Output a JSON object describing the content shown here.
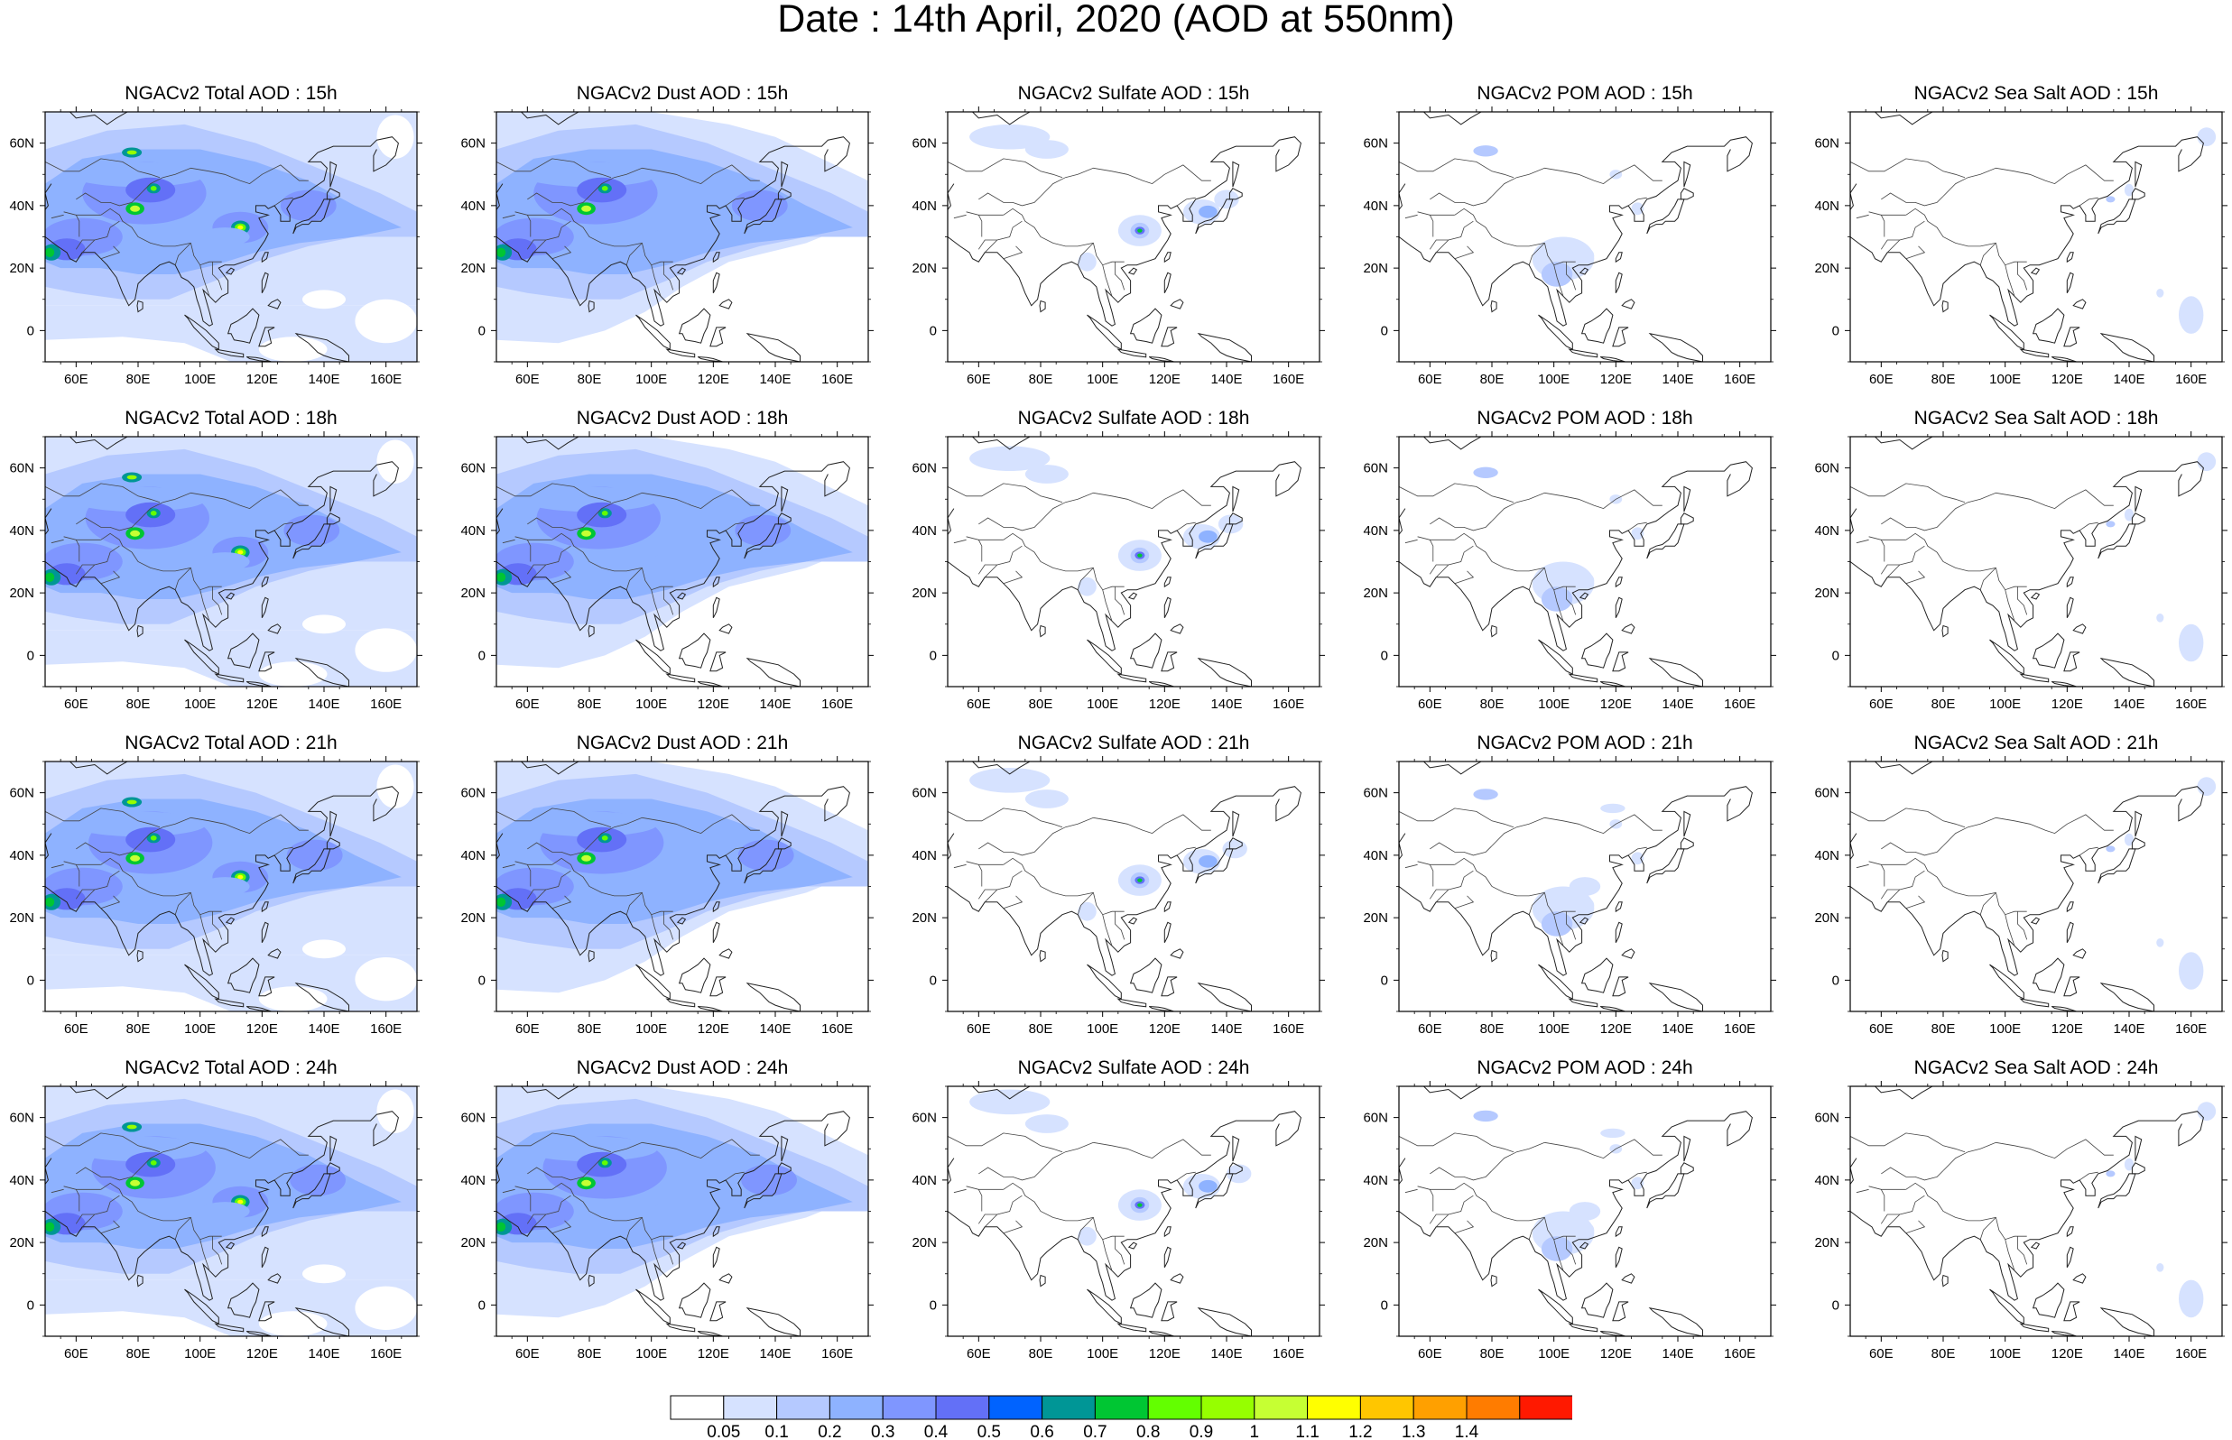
{
  "figure": {
    "title": "Date : 14th April, 2020 (AOD at 550nm)"
  },
  "map": {
    "lat_ticks": [
      "60N",
      "40N",
      "20N",
      "0"
    ],
    "lon_ticks": [
      "60E",
      "80E",
      "100E",
      "120E",
      "140E",
      "160E"
    ],
    "lat_range": [
      -10,
      70
    ],
    "lon_range": [
      50,
      170
    ]
  },
  "panels": [
    {
      "title": "NGACv2 Total AOD : 15h",
      "variable": "total",
      "hour": 15
    },
    {
      "title": "NGACv2 Dust AOD : 15h",
      "variable": "dust",
      "hour": 15
    },
    {
      "title": "NGACv2 Sulfate AOD : 15h",
      "variable": "sulfate",
      "hour": 15
    },
    {
      "title": "NGACv2 POM AOD : 15h",
      "variable": "pom",
      "hour": 15
    },
    {
      "title": "NGACv2 Sea Salt AOD : 15h",
      "variable": "seasalt",
      "hour": 15
    },
    {
      "title": "NGACv2 Total AOD : 18h",
      "variable": "total",
      "hour": 18
    },
    {
      "title": "NGACv2 Dust AOD : 18h",
      "variable": "dust",
      "hour": 18
    },
    {
      "title": "NGACv2 Sulfate AOD : 18h",
      "variable": "sulfate",
      "hour": 18
    },
    {
      "title": "NGACv2 POM AOD : 18h",
      "variable": "pom",
      "hour": 18
    },
    {
      "title": "NGACv2 Sea Salt AOD : 18h",
      "variable": "seasalt",
      "hour": 18
    },
    {
      "title": "NGACv2 Total AOD : 21h",
      "variable": "total",
      "hour": 21
    },
    {
      "title": "NGACv2 Dust AOD : 21h",
      "variable": "dust",
      "hour": 21
    },
    {
      "title": "NGACv2 Sulfate AOD : 21h",
      "variable": "sulfate",
      "hour": 21
    },
    {
      "title": "NGACv2 POM AOD : 21h",
      "variable": "pom",
      "hour": 21
    },
    {
      "title": "NGACv2 Sea Salt AOD : 21h",
      "variable": "seasalt",
      "hour": 21
    },
    {
      "title": "NGACv2 Total AOD : 24h",
      "variable": "total",
      "hour": 24
    },
    {
      "title": "NGACv2 Dust AOD : 24h",
      "variable": "dust",
      "hour": 24
    },
    {
      "title": "NGACv2 Sulfate AOD : 24h",
      "variable": "sulfate",
      "hour": 24
    },
    {
      "title": "NGACv2 POM AOD : 24h",
      "variable": "pom",
      "hour": 24
    },
    {
      "title": "NGACv2 Sea Salt  AOD : 24h",
      "variable": "seasalt",
      "hour": 24
    }
  ],
  "colorbar": {
    "labels": [
      "0.05",
      "0.1",
      "0.2",
      "0.3",
      "0.4",
      "0.5",
      "0.6",
      "0.7",
      "0.8",
      "0.9",
      "1",
      "1.1",
      "1.2",
      "1.3",
      "1.4"
    ],
    "colors": [
      "#ffffff",
      "#d6e2ff",
      "#b5c9ff",
      "#8eb2ff",
      "#7f96ff",
      "#6370f7",
      "#0063ff",
      "#009696",
      "#00c633",
      "#63ff00",
      "#96ff00",
      "#c6ff33",
      "#ffff00",
      "#ffc600",
      "#ffa000",
      "#ff7c00",
      "#ff1900"
    ]
  }
}
